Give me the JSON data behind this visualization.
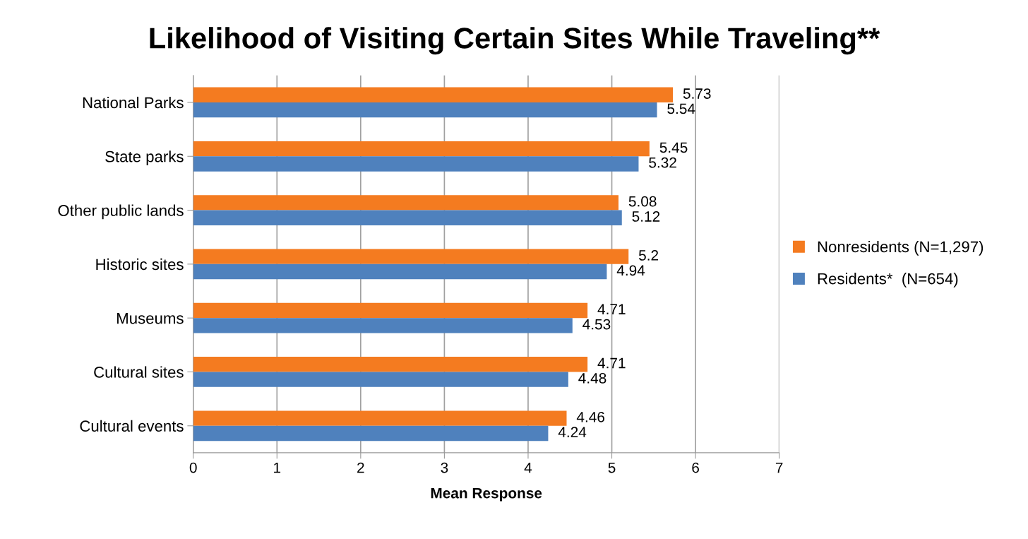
{
  "chart_data": {
    "type": "bar",
    "orientation": "horizontal",
    "title": "Likelihood of Visiting Certain Sites While Traveling**",
    "xlabel": "Mean Response",
    "categories": [
      "National Parks",
      "State parks",
      "Other public lands",
      "Historic sites",
      "Museums",
      "Cultural sites",
      "Cultural events"
    ],
    "series": [
      {
        "name": "Nonresidents (N=1,297)",
        "color": "#f47b20",
        "values": [
          5.73,
          5.45,
          5.08,
          5.2,
          4.71,
          4.71,
          4.46
        ]
      },
      {
        "name": "Residents*  (N=654)",
        "color": "#4f81bd",
        "values": [
          5.54,
          5.32,
          5.12,
          4.94,
          4.53,
          4.48,
          4.24
        ]
      }
    ],
    "xlim": [
      0,
      7
    ],
    "xticks": [
      0,
      1,
      2,
      3,
      4,
      5,
      6,
      7
    ],
    "grid": "x",
    "legend": "right",
    "data_labels": true
  }
}
